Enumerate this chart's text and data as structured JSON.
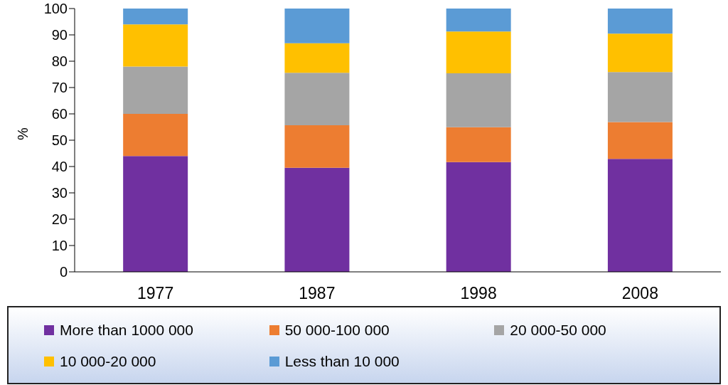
{
  "chart_data": {
    "type": "bar",
    "stacked": true,
    "ylabel": "%",
    "categories": [
      "1977",
      "1987",
      "1998",
      "2008"
    ],
    "series": [
      {
        "name": "More than 1000 000",
        "color": "#7030a0",
        "values": [
          44,
          39.5,
          41.7,
          42.9
        ]
      },
      {
        "name": "50 000-100 000",
        "color": "#ed7d31",
        "values": [
          16,
          16.2,
          13.2,
          14
        ]
      },
      {
        "name": "20 000-50 000",
        "color": "#a5a5a5",
        "values": [
          18,
          19.9,
          20.5,
          19
        ]
      },
      {
        "name": "10 000-20 000",
        "color": "#ffc000",
        "values": [
          16,
          11.2,
          15.9,
          14.6
        ]
      },
      {
        "name": "Less than 10 000",
        "color": "#5b9bd5",
        "values": [
          6,
          13.2,
          8.7,
          9.5
        ]
      }
    ],
    "ylim": [
      0,
      100
    ],
    "yticks": [
      0,
      10,
      20,
      30,
      40,
      50,
      60,
      70,
      80,
      90,
      100
    ],
    "grid": false,
    "legend": "bottom"
  }
}
